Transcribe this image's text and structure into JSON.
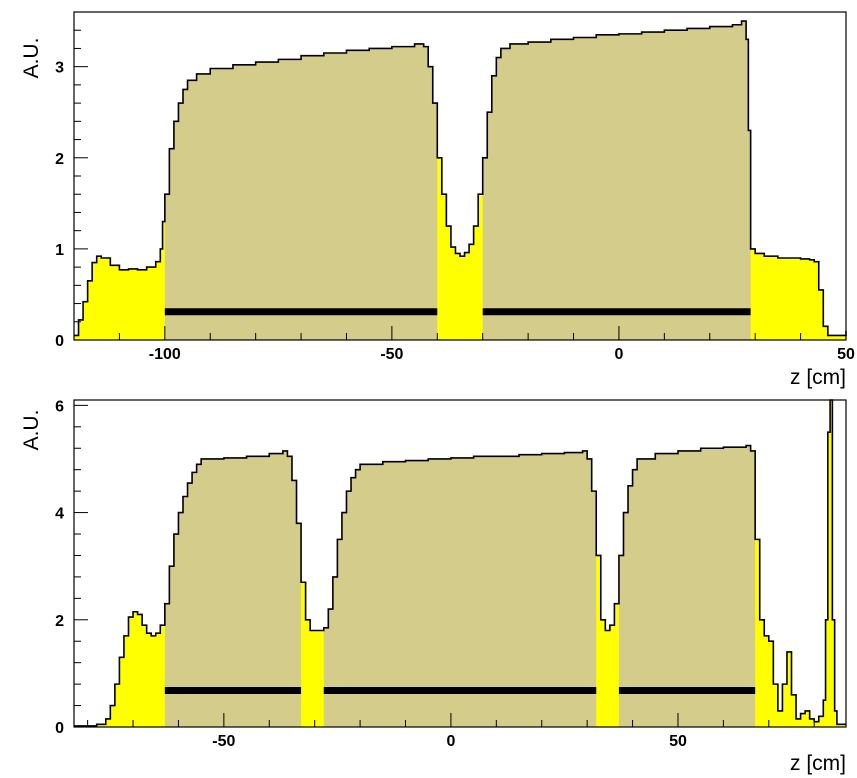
{
  "colors": {
    "fill_outside": "#ffff00",
    "fill_inside": "#d4cc8a",
    "outline": "#000000",
    "segment": "#000000",
    "background": "#ffffff"
  },
  "chart_data": [
    {
      "type": "histogram",
      "xlabel": "z [cm]",
      "ylabel": "A.U.",
      "xlim": [
        -120,
        50
      ],
      "ylim": [
        0,
        3.6
      ],
      "xticks": [
        -100,
        -50,
        0,
        50
      ],
      "yticks": [
        0,
        1,
        2,
        3
      ],
      "xtick_labels": [
        "-100",
        "-50",
        "0",
        "50"
      ],
      "ytick_labels": [
        "0",
        "1",
        "2",
        "3"
      ],
      "grid": false,
      "highlight_regions": [
        [
          -100,
          -40
        ],
        [
          -30,
          29
        ]
      ],
      "segments": [
        [
          -100,
          -40
        ],
        [
          -30,
          29
        ]
      ],
      "segment_y": 0.31,
      "profile": [
        [
          -120,
          0.05
        ],
        [
          -119,
          0.22
        ],
        [
          -118,
          0.42
        ],
        [
          -117,
          0.65
        ],
        [
          -116,
          0.85
        ],
        [
          -115,
          0.92
        ],
        [
          -114,
          0.9
        ],
        [
          -112,
          0.82
        ],
        [
          -110,
          0.77
        ],
        [
          -108,
          0.78
        ],
        [
          -106,
          0.77
        ],
        [
          -104,
          0.8
        ],
        [
          -102,
          0.86
        ],
        [
          -101,
          1.0
        ],
        [
          -100.5,
          1.3
        ],
        [
          -100,
          1.6
        ],
        [
          -99,
          2.1
        ],
        [
          -98,
          2.4
        ],
        [
          -97,
          2.6
        ],
        [
          -96,
          2.75
        ],
        [
          -95,
          2.85
        ],
        [
          -93,
          2.92
        ],
        [
          -90,
          2.98
        ],
        [
          -85,
          3.02
        ],
        [
          -80,
          3.05
        ],
        [
          -75,
          3.08
        ],
        [
          -70,
          3.12
        ],
        [
          -65,
          3.15
        ],
        [
          -60,
          3.18
        ],
        [
          -55,
          3.2
        ],
        [
          -50,
          3.22
        ],
        [
          -45,
          3.25
        ],
        [
          -43,
          3.22
        ],
        [
          -42,
          3.0
        ],
        [
          -41,
          2.6
        ],
        [
          -40,
          2.0
        ],
        [
          -39,
          1.6
        ],
        [
          -38,
          1.25
        ],
        [
          -37,
          1.02
        ],
        [
          -36,
          0.95
        ],
        [
          -35,
          0.92
        ],
        [
          -34,
          0.96
        ],
        [
          -33,
          1.05
        ],
        [
          -32,
          1.25
        ],
        [
          -31,
          1.6
        ],
        [
          -30,
          2.0
        ],
        [
          -29,
          2.5
        ],
        [
          -28,
          2.9
        ],
        [
          -27,
          3.1
        ],
        [
          -26,
          3.2
        ],
        [
          -24,
          3.25
        ],
        [
          -20,
          3.27
        ],
        [
          -15,
          3.3
        ],
        [
          -10,
          3.32
        ],
        [
          -5,
          3.35
        ],
        [
          0,
          3.36
        ],
        [
          5,
          3.38
        ],
        [
          10,
          3.4
        ],
        [
          15,
          3.42
        ],
        [
          20,
          3.44
        ],
        [
          25,
          3.46
        ],
        [
          27,
          3.5
        ],
        [
          28,
          3.3
        ],
        [
          28.5,
          2.3
        ],
        [
          29,
          1.0
        ],
        [
          30,
          0.95
        ],
        [
          32,
          0.92
        ],
        [
          35,
          0.9
        ],
        [
          38,
          0.9
        ],
        [
          40,
          0.89
        ],
        [
          42,
          0.88
        ],
        [
          43,
          0.86
        ],
        [
          44,
          0.55
        ],
        [
          45,
          0.15
        ],
        [
          46,
          0.05
        ],
        [
          48,
          0.05
        ],
        [
          50,
          0.1
        ]
      ]
    },
    {
      "type": "histogram",
      "xlabel": "z [cm]",
      "ylabel": "A.U.",
      "xlim": [
        -83,
        87
      ],
      "ylim": [
        0,
        6.1
      ],
      "xticks": [
        -50,
        0,
        50
      ],
      "yticks": [
        0,
        2,
        4,
        6
      ],
      "xtick_labels": [
        "-50",
        "0",
        "50"
      ],
      "ytick_labels": [
        "0",
        "2",
        "4",
        "6"
      ],
      "grid": false,
      "highlight_regions": [
        [
          -63,
          -33
        ],
        [
          -28,
          32
        ],
        [
          37,
          67
        ]
      ],
      "segments": [
        [
          -63,
          -33
        ],
        [
          -28,
          32
        ],
        [
          37,
          67
        ]
      ],
      "segment_y": 0.68,
      "profile": [
        [
          -83,
          0.02
        ],
        [
          -78,
          0.05
        ],
        [
          -76,
          0.15
        ],
        [
          -75,
          0.4
        ],
        [
          -74,
          0.8
        ],
        [
          -73,
          1.3
        ],
        [
          -72,
          1.7
        ],
        [
          -71,
          2.05
        ],
        [
          -70,
          2.15
        ],
        [
          -69,
          2.1
        ],
        [
          -68,
          1.9
        ],
        [
          -67,
          1.75
        ],
        [
          -66,
          1.7
        ],
        [
          -65,
          1.75
        ],
        [
          -64,
          1.9
        ],
        [
          -63,
          2.3
        ],
        [
          -62,
          3.0
        ],
        [
          -61,
          3.6
        ],
        [
          -60,
          4.0
        ],
        [
          -59,
          4.3
        ],
        [
          -58,
          4.55
        ],
        [
          -57,
          4.75
        ],
        [
          -56,
          4.9
        ],
        [
          -55,
          5.0
        ],
        [
          -50,
          5.02
        ],
        [
          -45,
          5.05
        ],
        [
          -40,
          5.1
        ],
        [
          -37,
          5.15
        ],
        [
          -36,
          5.05
        ],
        [
          -35,
          4.6
        ],
        [
          -34,
          3.8
        ],
        [
          -33,
          2.7
        ],
        [
          -32,
          2.0
        ],
        [
          -31,
          1.8
        ],
        [
          -30,
          1.8
        ],
        [
          -29,
          1.8
        ],
        [
          -28,
          1.85
        ],
        [
          -27,
          2.2
        ],
        [
          -26,
          2.8
        ],
        [
          -25,
          3.5
        ],
        [
          -24,
          4.0
        ],
        [
          -23,
          4.4
        ],
        [
          -22,
          4.65
        ],
        [
          -21,
          4.8
        ],
        [
          -20,
          4.9
        ],
        [
          -15,
          4.95
        ],
        [
          -10,
          4.97
        ],
        [
          -5,
          5.0
        ],
        [
          0,
          5.02
        ],
        [
          5,
          5.05
        ],
        [
          10,
          5.05
        ],
        [
          15,
          5.08
        ],
        [
          20,
          5.1
        ],
        [
          25,
          5.12
        ],
        [
          29,
          5.15
        ],
        [
          30,
          5.0
        ],
        [
          31,
          4.4
        ],
        [
          32,
          3.2
        ],
        [
          33,
          2.0
        ],
        [
          34,
          1.8
        ],
        [
          35,
          1.9
        ],
        [
          36,
          2.3
        ],
        [
          37,
          3.2
        ],
        [
          38,
          4.0
        ],
        [
          39,
          4.5
        ],
        [
          40,
          4.8
        ],
        [
          41,
          5.0
        ],
        [
          45,
          5.1
        ],
        [
          50,
          5.15
        ],
        [
          55,
          5.2
        ],
        [
          60,
          5.22
        ],
        [
          65,
          5.25
        ],
        [
          66,
          5.15
        ],
        [
          67,
          3.5
        ],
        [
          68,
          2.0
        ],
        [
          69,
          1.7
        ],
        [
          70,
          1.6
        ],
        [
          71,
          0.8
        ],
        [
          72,
          0.3
        ],
        [
          73,
          0.8
        ],
        [
          74,
          1.4
        ],
        [
          75,
          0.6
        ],
        [
          76,
          0.15
        ],
        [
          77,
          0.25
        ],
        [
          78,
          0.3
        ],
        [
          79,
          0.15
        ],
        [
          80,
          0.1
        ],
        [
          81,
          0.2
        ],
        [
          82,
          0.5
        ],
        [
          82.5,
          2.0
        ],
        [
          83,
          5.5
        ],
        [
          83.5,
          6.1
        ],
        [
          84,
          2.0
        ],
        [
          84.5,
          0.3
        ],
        [
          85,
          0.05
        ],
        [
          87,
          0.05
        ]
      ]
    }
  ]
}
